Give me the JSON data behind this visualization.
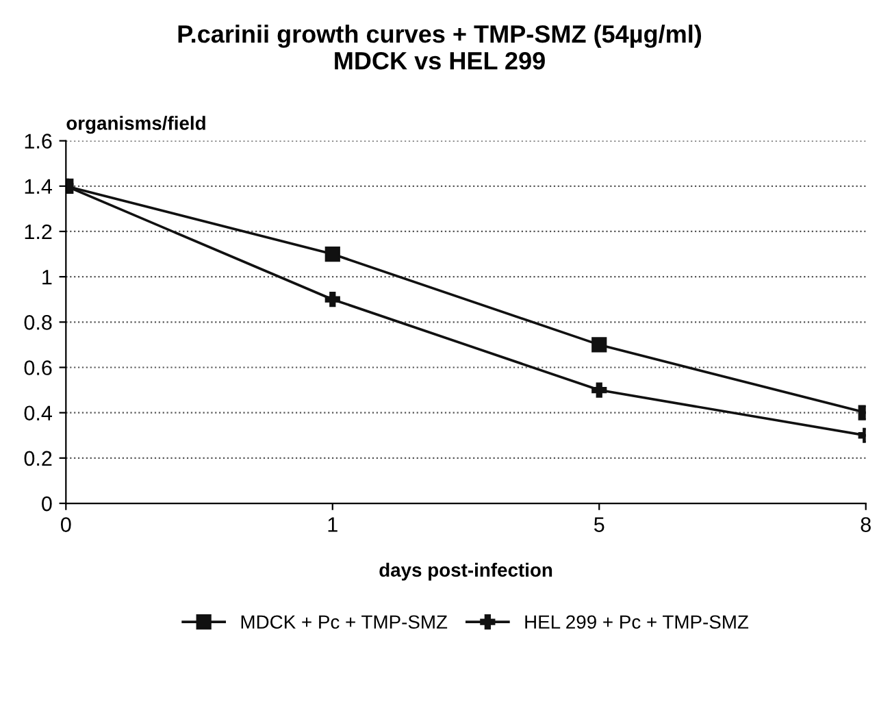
{
  "chart_data": {
    "type": "line",
    "title": "P.carinii growth curves + TMP-SMZ (54µg/ml)\nMDCK vs HEL 299",
    "ylabel": "organisms/field",
    "xlabel": "days post-infection",
    "categories": [
      "0",
      "1",
      "5",
      "8"
    ],
    "series": [
      {
        "name": "MDCK + Pc + TMP-SMZ",
        "color": "#111111",
        "marker": "square",
        "values": [
          1.4,
          1.1,
          0.7,
          0.4
        ]
      },
      {
        "name": "HEL 299 + Pc + TMP-SMZ",
        "color": "#111111",
        "marker": "cross",
        "values": [
          1.4,
          0.9,
          0.5,
          0.3
        ]
      }
    ],
    "ylim": [
      0,
      1.6
    ],
    "yticks": [
      0,
      0.2,
      0.4,
      0.6,
      0.8,
      1,
      1.2,
      1.4,
      1.6
    ],
    "grid": "y",
    "legend": "bottom",
    "line_style": "solid"
  }
}
